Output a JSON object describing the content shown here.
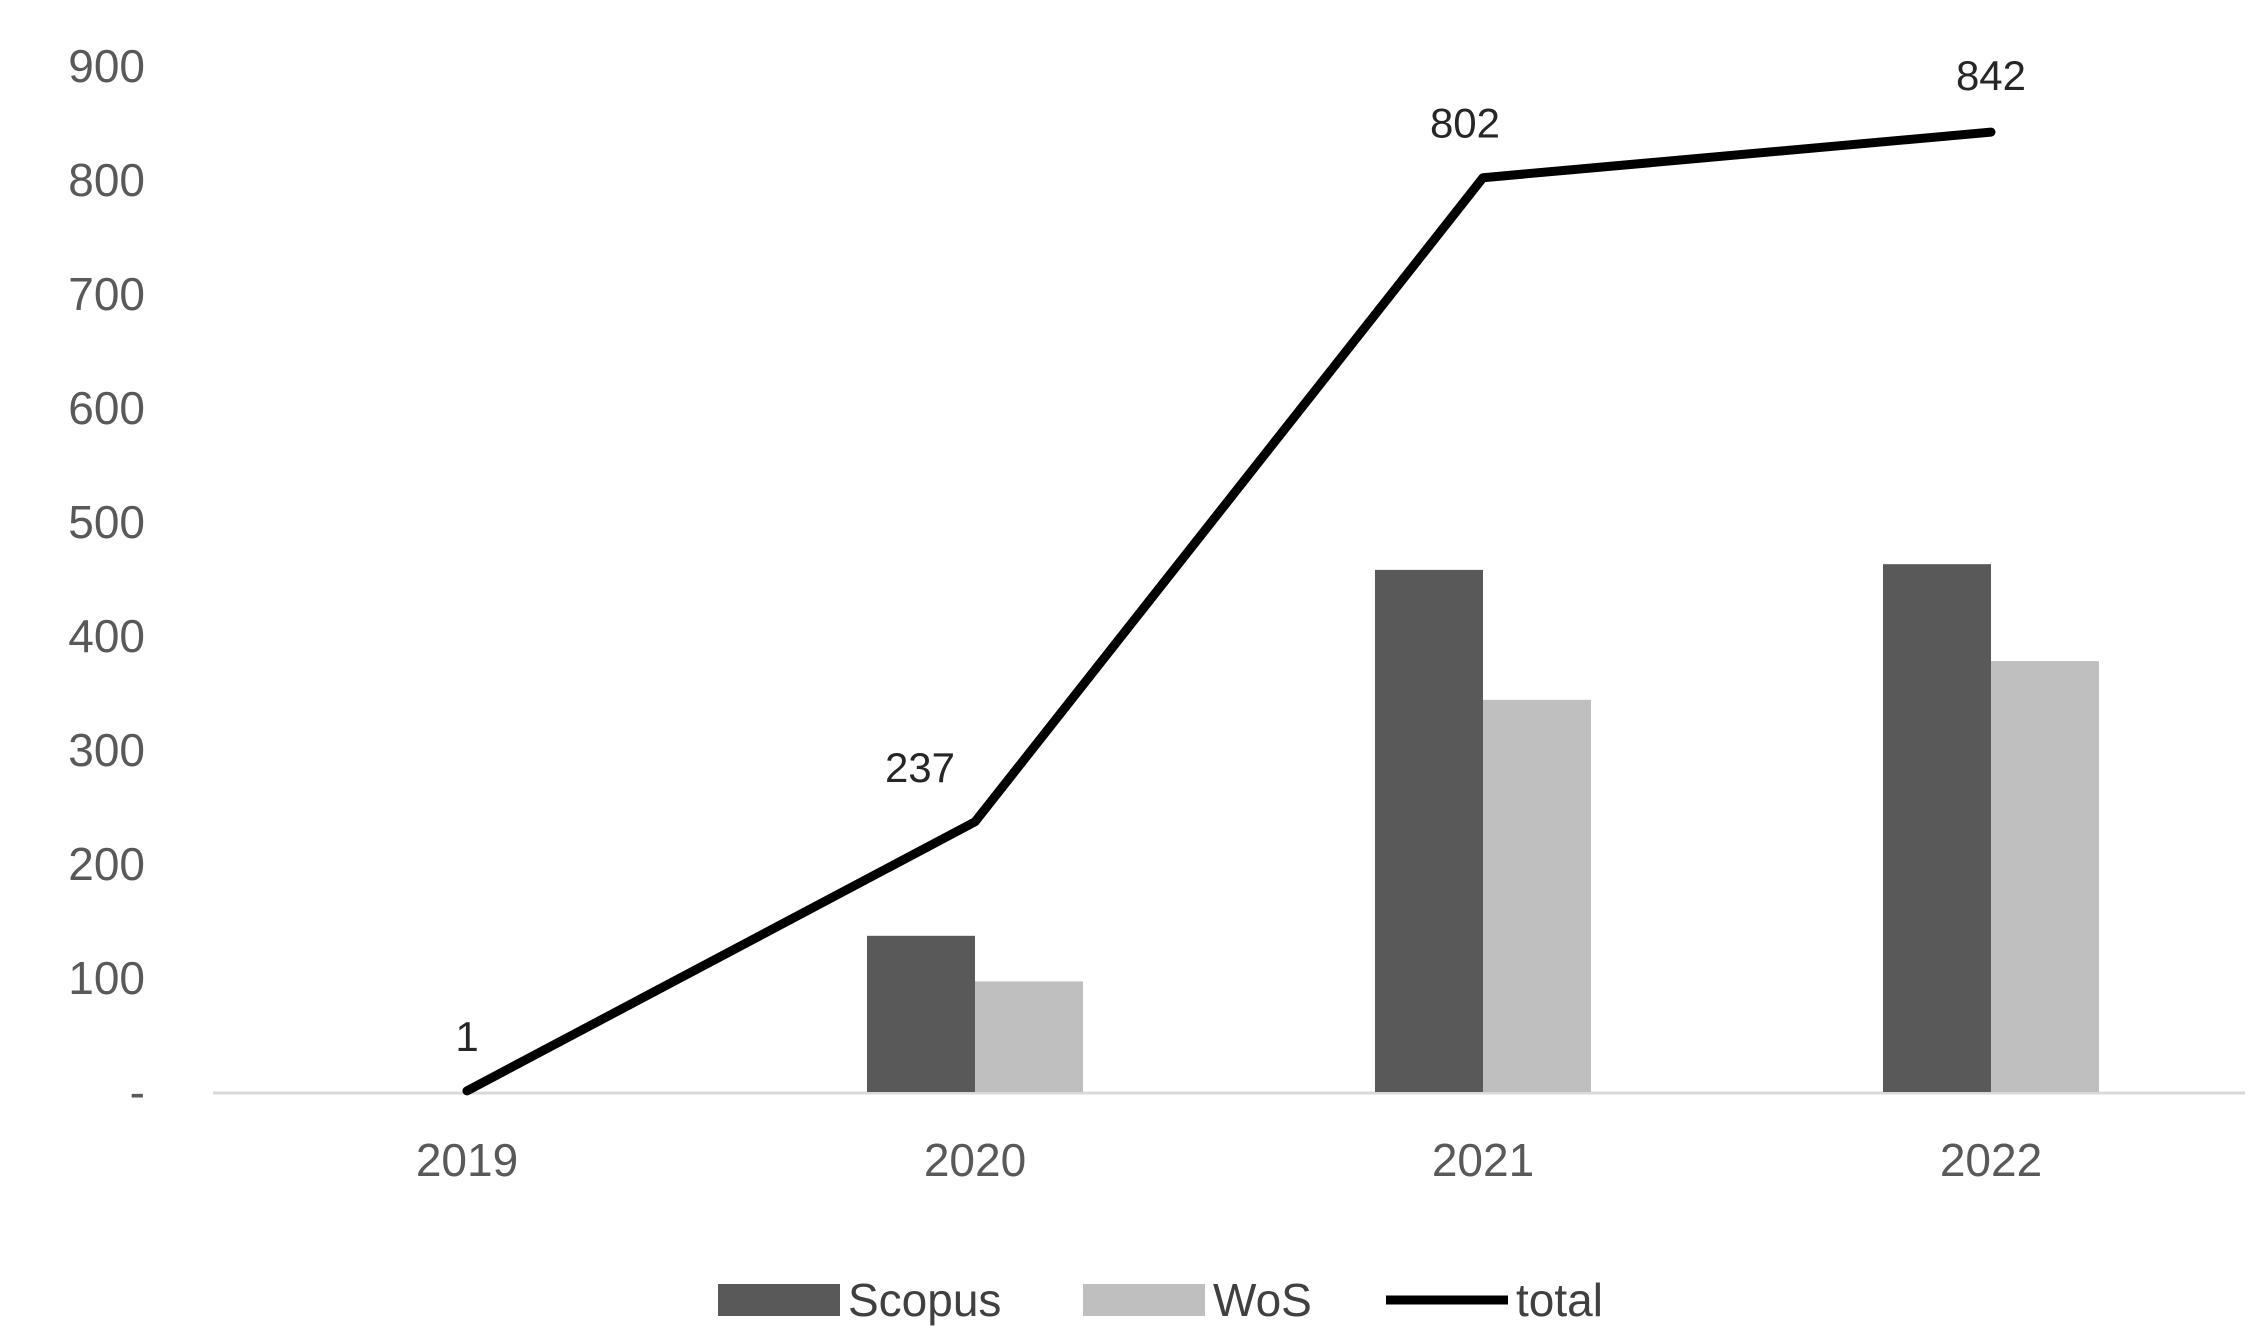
{
  "chart_data": {
    "type": "bar",
    "categories": [
      "2019",
      "2020",
      "2021",
      "2022"
    ],
    "series": [
      {
        "name": "Scopus",
        "type": "bar",
        "color": "#595959",
        "values": [
          0,
          137,
          458,
          463
        ]
      },
      {
        "name": "WoS",
        "type": "bar",
        "color": "#bfbfbf",
        "values": [
          0,
          97,
          344,
          378
        ]
      },
      {
        "name": "total",
        "type": "line",
        "color": "#000000",
        "values": [
          1,
          237,
          802,
          842
        ]
      }
    ],
    "data_labels": [
      "1",
      "237",
      "802",
      "842"
    ],
    "y_ticks": [
      {
        "value": 0,
        "label": "-"
      },
      {
        "value": 100,
        "label": "100"
      },
      {
        "value": 200,
        "label": "200"
      },
      {
        "value": 300,
        "label": "300"
      },
      {
        "value": 400,
        "label": "400"
      },
      {
        "value": 500,
        "label": "500"
      },
      {
        "value": 600,
        "label": "600"
      },
      {
        "value": 700,
        "label": "700"
      },
      {
        "value": 800,
        "label": "800"
      },
      {
        "value": 900,
        "label": "900"
      }
    ],
    "ylim": [
      0,
      900
    ],
    "grid": false,
    "legend_position": "bottom"
  }
}
